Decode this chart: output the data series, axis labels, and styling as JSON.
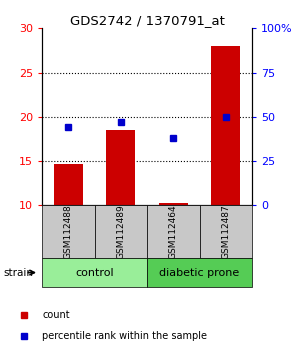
{
  "title": "GDS2742 / 1370791_at",
  "samples": [
    "GSM112488",
    "GSM112489",
    "GSM112464",
    "GSM112487"
  ],
  "counts": [
    14.7,
    18.5,
    10.3,
    28.0
  ],
  "percentiles": [
    44,
    47,
    38,
    50
  ],
  "left_ylim": [
    10,
    30
  ],
  "right_ylim": [
    0,
    100
  ],
  "left_yticks": [
    10,
    15,
    20,
    25,
    30
  ],
  "right_yticks": [
    0,
    25,
    50,
    75,
    100
  ],
  "right_yticklabels": [
    "0",
    "25",
    "50",
    "75",
    "100%"
  ],
  "groups": [
    {
      "label": "control",
      "samples": [
        0,
        1
      ],
      "color": "#99ee99"
    },
    {
      "label": "diabetic prone",
      "samples": [
        2,
        3
      ],
      "color": "#55cc55"
    }
  ],
  "bar_color": "#cc0000",
  "dot_color": "#0000cc",
  "bar_width": 0.55,
  "sample_box_color": "#c8c8c8",
  "legend_bar_label": "count",
  "legend_dot_label": "percentile rank within the sample",
  "strain_label": "strain"
}
